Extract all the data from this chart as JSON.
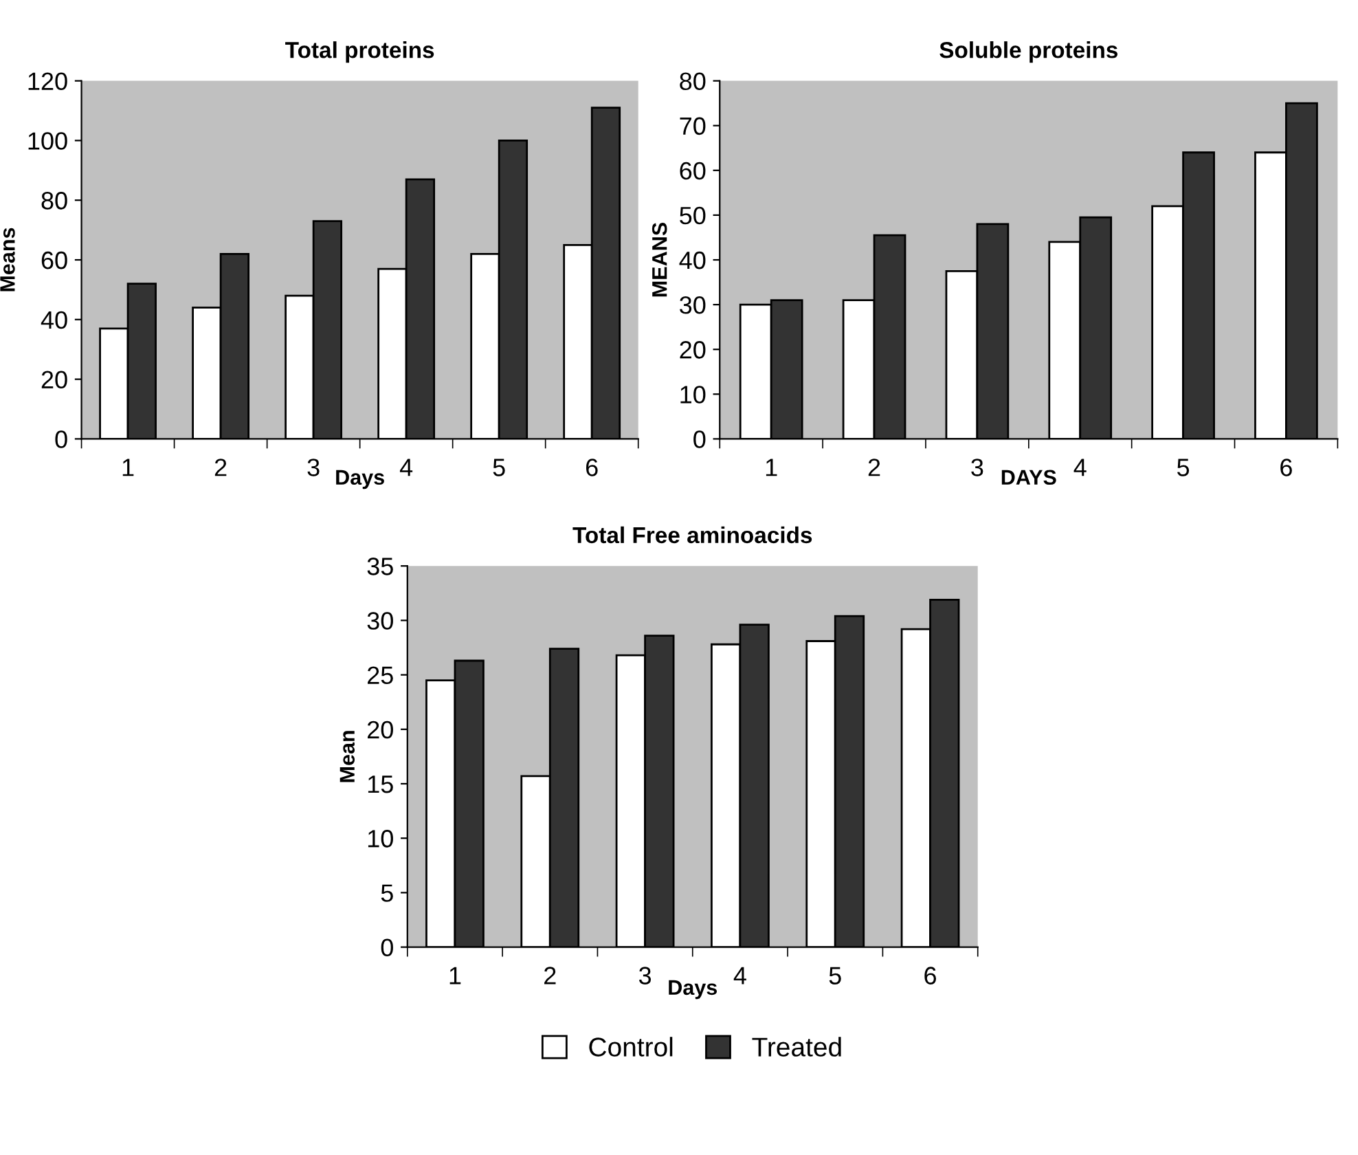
{
  "chart_data": [
    {
      "type": "bar",
      "title": "Total proteins",
      "xlabel": "Days",
      "ylabel": "Means",
      "categories": [
        "1",
        "2",
        "3",
        "4",
        "5",
        "6"
      ],
      "ylim": [
        0,
        120
      ],
      "yticks": [
        0,
        20,
        40,
        60,
        80,
        100,
        120
      ],
      "grid": false,
      "legend": false,
      "series": [
        {
          "color": "#ffffff",
          "values": [
            37,
            44,
            48,
            57,
            62,
            65
          ]
        },
        {
          "color": "#333333",
          "values": [
            52,
            62,
            73,
            87,
            100,
            111
          ]
        }
      ]
    },
    {
      "type": "bar",
      "title": "Soluble proteins",
      "xlabel": "DAYS",
      "ylabel": "MEANS",
      "categories": [
        "1",
        "2",
        "3",
        "4",
        "5",
        "6"
      ],
      "ylim": [
        0,
        80
      ],
      "yticks": [
        0,
        10,
        20,
        30,
        40,
        50,
        60,
        70,
        80
      ],
      "grid": false,
      "legend": false,
      "series": [
        {
          "color": "#ffffff",
          "values": [
            30,
            31,
            37.5,
            44,
            52,
            64
          ]
        },
        {
          "color": "#333333",
          "values": [
            31,
            45.5,
            48,
            49.5,
            64,
            75
          ]
        }
      ]
    },
    {
      "type": "bar",
      "title": "Total Free aminoacids",
      "xlabel": "Days",
      "ylabel": "Mean",
      "categories": [
        "1",
        "2",
        "3",
        "4",
        "5",
        "6"
      ],
      "ylim": [
        0,
        35
      ],
      "yticks": [
        0,
        5,
        10,
        15,
        20,
        25,
        30,
        35
      ],
      "grid": false,
      "legend": "bottom",
      "series": [
        {
          "name": "Control",
          "color": "#ffffff",
          "values": [
            24.5,
            15.7,
            26.8,
            27.8,
            28.1,
            29.2
          ]
        },
        {
          "name": "Treated",
          "color": "#333333",
          "values": [
            26.3,
            27.4,
            28.6,
            29.6,
            30.4,
            31.9
          ]
        }
      ]
    }
  ]
}
